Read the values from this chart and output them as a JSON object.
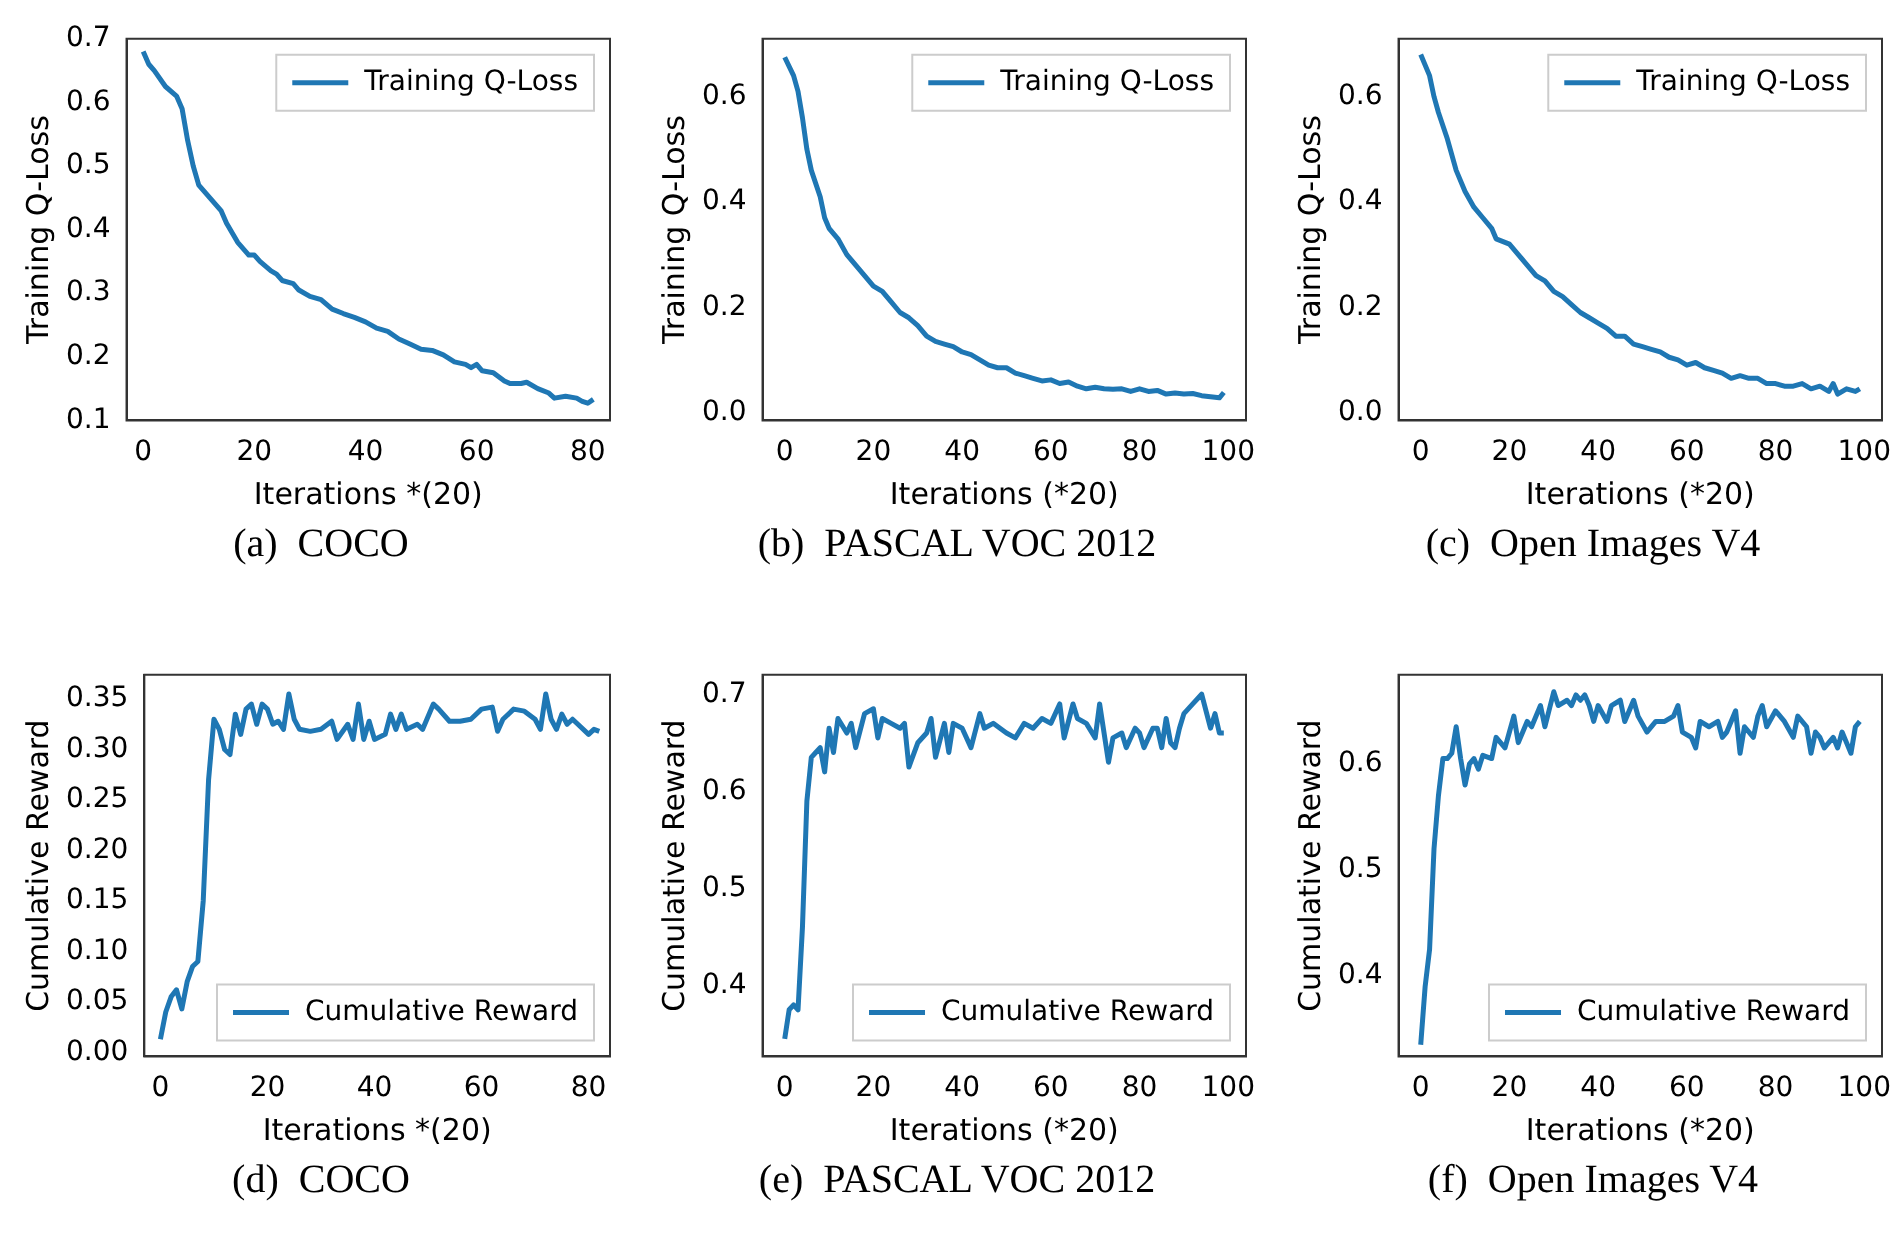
{
  "chart_data": [
    {
      "type": "line",
      "title": "(a)  COCO",
      "xlabel": "Iterations *(20)",
      "ylabel": "Training Q-Loss",
      "legend": "top right",
      "xlim": [
        -3,
        84
      ],
      "ylim": [
        0.1,
        0.7
      ],
      "xticks": [
        0,
        20,
        40,
        60,
        80
      ],
      "yticks": [
        0.1,
        0.2,
        0.3,
        0.4,
        0.5,
        0.6,
        0.7
      ],
      "x": [
        0,
        1,
        2,
        4,
        6,
        7,
        8,
        9,
        10,
        12,
        14,
        15,
        17,
        19,
        20,
        21,
        23,
        24,
        25,
        27,
        28,
        30,
        32,
        34,
        36,
        38,
        40,
        42,
        44,
        46,
        48,
        50,
        52,
        54,
        56,
        58,
        59,
        60,
        61,
        63,
        65,
        66,
        68,
        69,
        71,
        73,
        74,
        76,
        78,
        79,
        80,
        81
      ],
      "series": [
        {
          "name": "Training Q-Loss",
          "color": "#1f77b4",
          "values": [
            0.68,
            0.66,
            0.65,
            0.625,
            0.61,
            0.59,
            0.54,
            0.5,
            0.47,
            0.45,
            0.43,
            0.41,
            0.38,
            0.36,
            0.36,
            0.35,
            0.335,
            0.33,
            0.32,
            0.315,
            0.305,
            0.295,
            0.29,
            0.275,
            0.268,
            0.262,
            0.255,
            0.245,
            0.24,
            0.228,
            0.22,
            0.212,
            0.21,
            0.203,
            0.192,
            0.188,
            0.183,
            0.188,
            0.178,
            0.175,
            0.162,
            0.158,
            0.158,
            0.16,
            0.15,
            0.143,
            0.135,
            0.138,
            0.135,
            0.13,
            0.127,
            0.133
          ]
        }
      ]
    },
    {
      "type": "line",
      "title": "(b)  PASCAL VOC 2012",
      "xlabel": "Iterations (*20)",
      "ylabel": "Training Q-Loss",
      "legend": "top right",
      "xlim": [
        -5,
        104
      ],
      "ylim": [
        -0.015,
        0.71
      ],
      "xticks": [
        0,
        20,
        40,
        60,
        80,
        100
      ],
      "yticks": [
        {
          "value": 0,
          "label": "0.0"
        },
        0.2,
        0.4,
        0.6
      ],
      "x": [
        0,
        2,
        3,
        4,
        5,
        6,
        8,
        9,
        10,
        12,
        14,
        16,
        18,
        20,
        22,
        24,
        26,
        28,
        30,
        32,
        34,
        36,
        38,
        40,
        42,
        44,
        46,
        48,
        50,
        52,
        54,
        56,
        58,
        60,
        62,
        64,
        66,
        68,
        70,
        72,
        74,
        76,
        78,
        80,
        82,
        84,
        86,
        88,
        90,
        92,
        94,
        96,
        98,
        99
      ],
      "series": [
        {
          "name": "Training Q-Loss",
          "color": "#1f77b4",
          "values": [
            0.675,
            0.64,
            0.61,
            0.56,
            0.5,
            0.46,
            0.41,
            0.37,
            0.35,
            0.33,
            0.3,
            0.28,
            0.26,
            0.24,
            0.23,
            0.21,
            0.19,
            0.18,
            0.165,
            0.145,
            0.135,
            0.13,
            0.125,
            0.115,
            0.11,
            0.1,
            0.09,
            0.085,
            0.085,
            0.075,
            0.07,
            0.065,
            0.06,
            0.062,
            0.055,
            0.058,
            0.05,
            0.045,
            0.048,
            0.045,
            0.044,
            0.045,
            0.04,
            0.045,
            0.04,
            0.042,
            0.035,
            0.037,
            0.035,
            0.036,
            0.032,
            0.03,
            0.028,
            0.038
          ]
        }
      ]
    },
    {
      "type": "line",
      "title": "(c)  Open Images V4",
      "xlabel": "Iterations (*20)",
      "ylabel": "Training Q-Loss",
      "legend": "top right",
      "xlim": [
        -5,
        104
      ],
      "ylim": [
        -0.015,
        0.71
      ],
      "xticks": [
        0,
        20,
        40,
        60,
        80,
        100
      ],
      "yticks": [
        {
          "value": 0,
          "label": "0.0"
        },
        0.2,
        0.4,
        0.6
      ],
      "x": [
        0,
        2,
        3,
        4,
        6,
        8,
        10,
        12,
        14,
        16,
        17,
        20,
        22,
        24,
        26,
        28,
        30,
        32,
        34,
        36,
        38,
        40,
        42,
        44,
        46,
        48,
        50,
        52,
        54,
        56,
        58,
        60,
        62,
        64,
        66,
        68,
        70,
        72,
        74,
        76,
        78,
        80,
        82,
        84,
        86,
        88,
        90,
        92,
        93,
        94,
        96,
        98,
        99
      ],
      "series": [
        {
          "name": "Training Q-Loss",
          "color": "#1f77b4",
          "values": [
            0.68,
            0.64,
            0.6,
            0.57,
            0.52,
            0.46,
            0.42,
            0.39,
            0.37,
            0.35,
            0.33,
            0.32,
            0.3,
            0.28,
            0.26,
            0.25,
            0.23,
            0.22,
            0.205,
            0.19,
            0.18,
            0.17,
            0.16,
            0.145,
            0.145,
            0.13,
            0.125,
            0.12,
            0.115,
            0.105,
            0.1,
            0.09,
            0.095,
            0.085,
            0.08,
            0.075,
            0.065,
            0.07,
            0.065,
            0.065,
            0.055,
            0.055,
            0.05,
            0.05,
            0.055,
            0.045,
            0.05,
            0.04,
            0.055,
            0.035,
            0.045,
            0.04,
            0.045
          ]
        }
      ]
    },
    {
      "type": "line",
      "title": "(d)  COCO",
      "xlabel": "Iterations *(20)",
      "ylabel": "Cumulative Reward",
      "legend": "bottom right",
      "xlim": [
        -3,
        84
      ],
      "ylim": [
        -0.004,
        0.374
      ],
      "xticks": [
        0,
        20,
        40,
        60,
        80
      ],
      "yticks": [
        {
          "value": 0,
          "label": "0.00"
        },
        {
          "value": 0.05,
          "label": "0.05"
        },
        {
          "value": 0.1,
          "label": "0.10"
        },
        0.15,
        {
          "value": 0.2,
          "label": "0.20"
        },
        0.25,
        {
          "value": 0.3,
          "label": "0.30"
        },
        0.35
      ],
      "x": [
        0,
        1,
        2,
        3,
        4,
        5,
        6,
        7,
        8,
        9,
        10,
        11,
        12,
        13,
        14,
        15,
        16,
        17,
        18,
        19,
        20,
        21,
        22,
        23,
        24,
        25,
        26,
        28,
        30,
        32,
        33,
        35,
        36,
        37,
        38,
        39,
        40,
        42,
        43,
        44,
        45,
        46,
        48,
        49,
        51,
        52,
        54,
        56,
        58,
        60,
        62,
        63,
        64,
        66,
        68,
        70,
        71,
        72,
        73,
        74,
        75,
        76,
        77,
        78,
        80,
        81,
        82
      ],
      "series": [
        {
          "name": "Cumulative Reward",
          "color": "#1f77b4",
          "values": [
            0.013,
            0.04,
            0.055,
            0.062,
            0.043,
            0.07,
            0.085,
            0.09,
            0.15,
            0.27,
            0.33,
            0.32,
            0.3,
            0.295,
            0.335,
            0.315,
            0.34,
            0.345,
            0.325,
            0.345,
            0.34,
            0.325,
            0.328,
            0.32,
            0.355,
            0.33,
            0.32,
            0.318,
            0.32,
            0.328,
            0.31,
            0.325,
            0.31,
            0.345,
            0.31,
            0.328,
            0.31,
            0.315,
            0.335,
            0.32,
            0.335,
            0.32,
            0.325,
            0.32,
            0.345,
            0.34,
            0.328,
            0.328,
            0.33,
            0.34,
            0.342,
            0.318,
            0.33,
            0.34,
            0.338,
            0.33,
            0.32,
            0.355,
            0.33,
            0.32,
            0.335,
            0.325,
            0.33,
            0.325,
            0.315,
            0.32,
            0.318
          ]
        }
      ]
    },
    {
      "type": "line",
      "title": "(e)  PASCAL VOC 2012",
      "xlabel": "Iterations (*20)",
      "ylabel": "Cumulative Reward",
      "legend": "bottom right",
      "xlim": [
        -5,
        104
      ],
      "ylim": [
        0.327,
        0.72
      ],
      "xticks": [
        0,
        20,
        40,
        60,
        80,
        100
      ],
      "yticks": [
        0.4,
        0.5,
        0.6,
        0.7
      ],
      "x": [
        0,
        1,
        2,
        3,
        4,
        5,
        6,
        7,
        8,
        9,
        10,
        11,
        12,
        14,
        15,
        16,
        18,
        20,
        21,
        22,
        24,
        26,
        27,
        28,
        30,
        32,
        33,
        34,
        36,
        37,
        38,
        40,
        42,
        44,
        45,
        47,
        50,
        52,
        54,
        56,
        58,
        60,
        62,
        63,
        65,
        66,
        68,
        70,
        71,
        73,
        74,
        76,
        77,
        79,
        80,
        81,
        83,
        84,
        85,
        86,
        87,
        88,
        89,
        90,
        92,
        94,
        96,
        97,
        98,
        99
      ],
      "series": [
        {
          "name": "Cumulative Reward",
          "color": "#1f77b4",
          "values": [
            0.345,
            0.375,
            0.38,
            0.375,
            0.46,
            0.59,
            0.635,
            0.64,
            0.645,
            0.62,
            0.665,
            0.64,
            0.675,
            0.66,
            0.67,
            0.645,
            0.68,
            0.685,
            0.655,
            0.675,
            0.67,
            0.665,
            0.67,
            0.625,
            0.65,
            0.66,
            0.675,
            0.635,
            0.67,
            0.64,
            0.67,
            0.665,
            0.645,
            0.68,
            0.665,
            0.67,
            0.66,
            0.655,
            0.67,
            0.665,
            0.675,
            0.67,
            0.69,
            0.655,
            0.69,
            0.675,
            0.67,
            0.655,
            0.69,
            0.63,
            0.655,
            0.66,
            0.645,
            0.665,
            0.66,
            0.645,
            0.665,
            0.665,
            0.645,
            0.675,
            0.65,
            0.645,
            0.665,
            0.68,
            0.69,
            0.7,
            0.665,
            0.68,
            0.66,
            0.66
          ]
        }
      ]
    },
    {
      "type": "line",
      "title": "(f)  Open Images V4",
      "xlabel": "Iterations (*20)",
      "ylabel": "Cumulative Reward",
      "legend": "bottom right",
      "xlim": [
        -5,
        104
      ],
      "ylim": [
        0.324,
        0.684
      ],
      "xticks": [
        0,
        20,
        40,
        60,
        80,
        100
      ],
      "yticks": [
        0.4,
        0.5,
        0.6
      ],
      "x": [
        0,
        1,
        2,
        3,
        4,
        5,
        6,
        7,
        8,
        9,
        10,
        11,
        12,
        13,
        14,
        16,
        17,
        18,
        19,
        20,
        21,
        22,
        24,
        25,
        27,
        28,
        30,
        31,
        33,
        34,
        35,
        36,
        37,
        38,
        39,
        40,
        42,
        43,
        45,
        46,
        48,
        49,
        51,
        53,
        55,
        57,
        58,
        59,
        61,
        62,
        63,
        65,
        67,
        68,
        69,
        71,
        72,
        73,
        75,
        76,
        77,
        78,
        80,
        82,
        84,
        85,
        87,
        88,
        89,
        90,
        91,
        93,
        94,
        95,
        96,
        97,
        98,
        99
      ],
      "series": [
        {
          "name": "Cumulative Reward",
          "color": "#1f77b4",
          "values": [
            0.335,
            0.39,
            0.425,
            0.52,
            0.57,
            0.605,
            0.605,
            0.61,
            0.635,
            0.605,
            0.58,
            0.6,
            0.605,
            0.595,
            0.608,
            0.605,
            0.625,
            0.62,
            0.615,
            0.63,
            0.645,
            0.62,
            0.64,
            0.635,
            0.655,
            0.635,
            0.668,
            0.655,
            0.66,
            0.655,
            0.665,
            0.66,
            0.665,
            0.655,
            0.64,
            0.655,
            0.64,
            0.655,
            0.66,
            0.64,
            0.66,
            0.645,
            0.63,
            0.64,
            0.64,
            0.645,
            0.655,
            0.63,
            0.625,
            0.615,
            0.64,
            0.635,
            0.64,
            0.625,
            0.63,
            0.65,
            0.61,
            0.635,
            0.625,
            0.645,
            0.655,
            0.635,
            0.65,
            0.64,
            0.625,
            0.645,
            0.635,
            0.61,
            0.63,
            0.625,
            0.615,
            0.625,
            0.615,
            0.63,
            0.62,
            0.61,
            0.635,
            0.64
          ]
        }
      ]
    }
  ]
}
